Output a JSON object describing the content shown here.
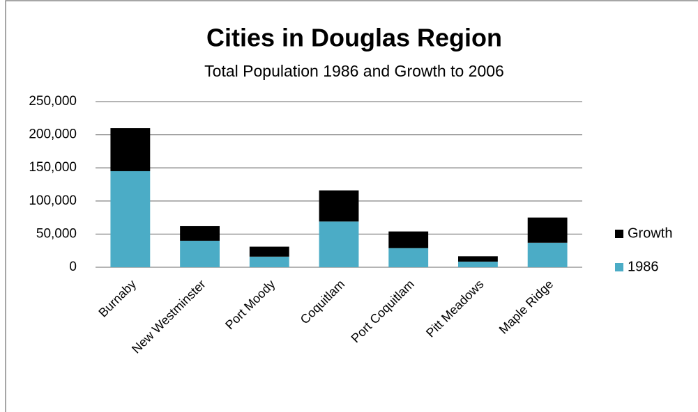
{
  "chart_data": {
    "type": "stacked_bar",
    "title": "Cities in Douglas Region",
    "subtitle": "Total Population 1986 and Growth to 2006",
    "categories": [
      "Burnaby",
      "New Westminster",
      "Port Moody",
      "Coquitlam",
      "Port Coquitlam",
      "Pitt Meadows",
      "Maple Ridge"
    ],
    "series": [
      {
        "name": "1986",
        "color": "#4bacc6",
        "values": [
          145000,
          40000,
          16000,
          69000,
          29000,
          8500,
          37000
        ]
      },
      {
        "name": "Growth",
        "color": "#000000",
        "values": [
          65000,
          22000,
          15000,
          47000,
          25000,
          8000,
          38000
        ]
      }
    ],
    "ylim": [
      0,
      250000
    ],
    "yticks": [
      0,
      {
        "value": 50000,
        "label": "50,000"
      },
      {
        "value": 100000,
        "label": "100,000"
      },
      {
        "value": 150000,
        "label": "150,000"
      },
      {
        "value": 200000,
        "label": "200,000"
      },
      {
        "value": 250000,
        "label": "250,000"
      }
    ],
    "grid": true,
    "legend": "right"
  }
}
